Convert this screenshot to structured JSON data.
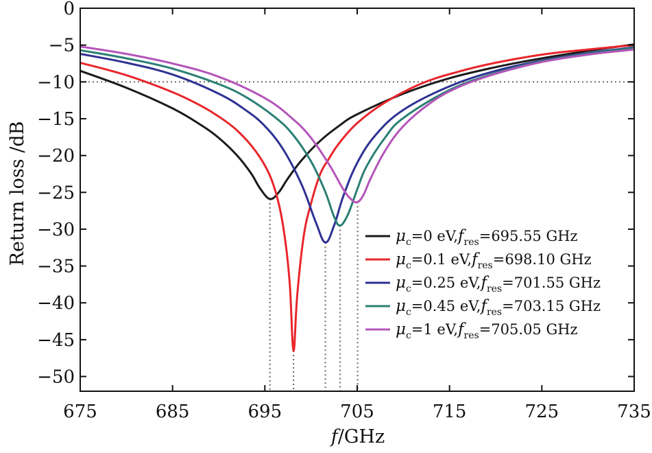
{
  "chart_data": {
    "type": "line",
    "xlabel": {
      "symbol": "f",
      "unit": "/GHz"
    },
    "ylabel": "Return loss /dB",
    "xlim": [
      675,
      735
    ],
    "ylim": [
      -52,
      0
    ],
    "xticks": [
      675,
      685,
      695,
      705,
      715,
      725,
      735
    ],
    "yticks": [
      0,
      -5,
      -10,
      -15,
      -20,
      -25,
      -30,
      -35,
      -40,
      -45,
      -50
    ],
    "grid": false,
    "legend_position": "bottom-right",
    "reference_line": {
      "y": -10,
      "style": "dotted"
    },
    "resonance_markers": [
      695.55,
      698.1,
      701.55,
      703.15,
      705.05
    ],
    "series": [
      {
        "name": "μc=0 eV, fres=695.55 GHz",
        "mu": "0 eV",
        "fres": "695.55 GHz",
        "color": "#1a1a1a",
        "x": [
          675,
          680,
          685,
          688,
          690,
          692,
          693.5,
          694.5,
          695.55,
          696.5,
          697.5,
          699,
          701,
          703,
          705,
          710,
          715,
          720,
          725,
          730,
          735
        ],
        "y": [
          -8.5,
          -10.8,
          -13.6,
          -15.8,
          -17.6,
          -20.0,
          -22.4,
          -24.5,
          -25.9,
          -25.0,
          -23.1,
          -20.6,
          -18.0,
          -16.0,
          -14.4,
          -11.6,
          -9.5,
          -8.0,
          -6.8,
          -5.8,
          -4.9
        ]
      },
      {
        "name": "μc=0.1 eV, fres=698.10 GHz",
        "mu": "0.1 eV",
        "fres": "698.10 GHz",
        "color": "#e8262b",
        "x": [
          675,
          680,
          685,
          688,
          690,
          692,
          694,
          695.5,
          696.5,
          697.2,
          697.7,
          698.1,
          698.5,
          699.2,
          700,
          701,
          702,
          703,
          705,
          708,
          712,
          716,
          720,
          725,
          730,
          735
        ],
        "y": [
          -7.4,
          -9.1,
          -11.4,
          -13.2,
          -14.7,
          -16.6,
          -19.4,
          -22.6,
          -26.5,
          -31.5,
          -37.5,
          -46.5,
          -39.0,
          -31.0,
          -26.5,
          -22.5,
          -20.3,
          -18.4,
          -15.6,
          -12.8,
          -10.2,
          -8.6,
          -7.4,
          -6.3,
          -5.6,
          -5.0
        ]
      },
      {
        "name": "μc=0.25 eV, fres=701.55 GHz",
        "mu": "0.25 eV",
        "fres": "701.55 GHz",
        "color": "#2e3192",
        "x": [
          675,
          680,
          685,
          690,
          693,
          695,
          697,
          699,
          700.5,
          701.55,
          702.5,
          703.5,
          705,
          707,
          710,
          715,
          720,
          725,
          730,
          735
        ],
        "y": [
          -6.2,
          -7.4,
          -9.0,
          -11.6,
          -13.9,
          -16.0,
          -19.2,
          -24.0,
          -29.0,
          -31.8,
          -29.5,
          -25.5,
          -21.0,
          -17.2,
          -13.8,
          -10.6,
          -8.5,
          -7.1,
          -6.1,
          -5.3
        ]
      },
      {
        "name": "μc=0.45 eV, fres=703.15 GHz",
        "mu": "0.45 eV",
        "fres": "703.15 GHz",
        "color": "#2a7f73",
        "x": [
          675,
          680,
          685,
          690,
          693,
          696,
          698,
          700,
          701.5,
          702.5,
          703.15,
          704,
          705,
          706,
          708,
          710,
          715,
          720,
          725,
          730,
          735
        ],
        "y": [
          -5.7,
          -6.8,
          -8.2,
          -10.3,
          -12.1,
          -14.7,
          -17.1,
          -20.8,
          -24.8,
          -28.3,
          -29.5,
          -28.0,
          -24.6,
          -21.5,
          -17.6,
          -14.9,
          -11.1,
          -8.8,
          -7.2,
          -6.2,
          -5.4
        ]
      },
      {
        "name": "μc=1 eV, fres=705.05 GHz",
        "mu": "1 eV",
        "fres": "705.05 GHz",
        "color": "#b455b9",
        "x": [
          675,
          680,
          685,
          690,
          695,
          698,
          700,
          702,
          703.5,
          704.4,
          705.05,
          705.7,
          706.5,
          708,
          710,
          713,
          716,
          720,
          725,
          730,
          735
        ],
        "y": [
          -5.2,
          -6.2,
          -7.5,
          -9.3,
          -12.2,
          -15.0,
          -17.6,
          -21.3,
          -24.6,
          -26.0,
          -26.3,
          -25.3,
          -23.0,
          -19.4,
          -16.0,
          -12.8,
          -10.7,
          -8.9,
          -7.3,
          -6.3,
          -5.6
        ]
      }
    ]
  }
}
